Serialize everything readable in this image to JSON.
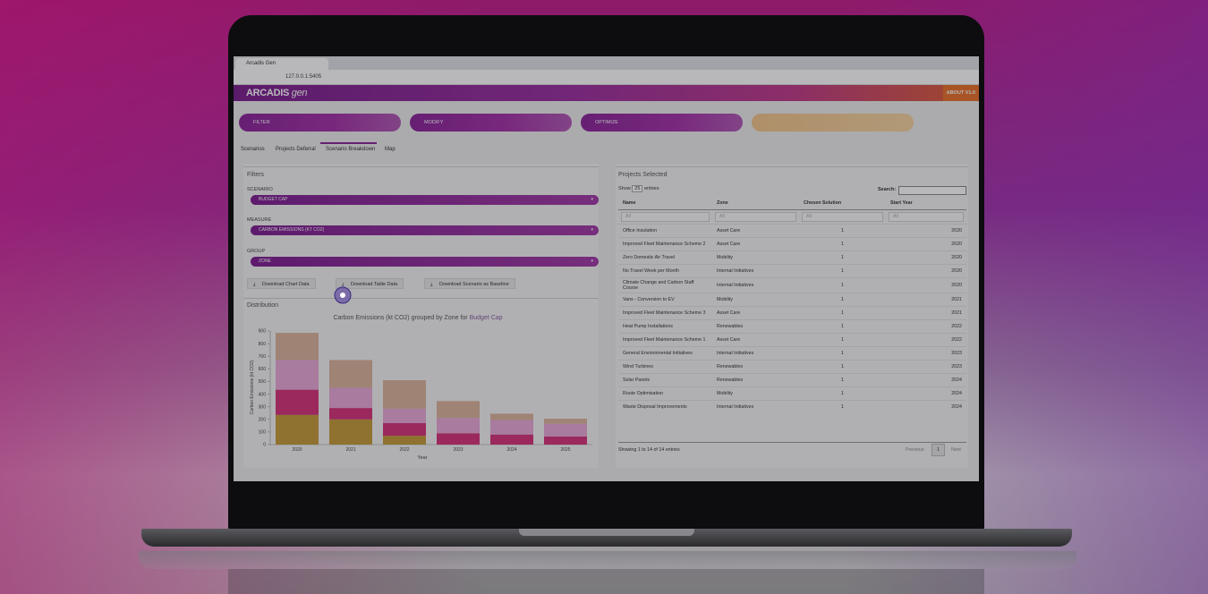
{
  "browser": {
    "tab_title": "Arcadis Gen",
    "url": "127.0.0.1:5405"
  },
  "app": {
    "logo": "ARCADIS",
    "logo_suffix": "gen",
    "about": "ABOUT V1.0",
    "actions": [
      "FILTER",
      "MODIFY",
      "OPTIMIZE"
    ],
    "tabs": [
      "Scenarios",
      "Projects Deferral",
      "Scenario Breakdown",
      "Map"
    ]
  },
  "filters": {
    "title": "Filters",
    "fields": [
      {
        "label": "SCENARIO",
        "value": "BUDGET CAP"
      },
      {
        "label": "MEASURE",
        "value": "CARBON EMISSIONS (KT CO2)"
      },
      {
        "label": "GROUP",
        "value": "ZONE"
      }
    ],
    "buttons": [
      "Download Chart Data",
      "Download Table Data",
      "Download Scenario as Baseline"
    ]
  },
  "distribution_title": "Distribution",
  "chart_data": {
    "type": "bar",
    "stacked": true,
    "title": "Carbon Emissions (kt CO2) grouped by Zone for",
    "title_highlight": "Budget Cap",
    "x_label": "Year",
    "y_label": "Carbon Emissions (kt CO2)",
    "categories": [
      "2020",
      "2021",
      "2022",
      "2023",
      "2024",
      "2025"
    ],
    "ylim": [
      0,
      900
    ],
    "yticks": [
      0,
      100,
      200,
      300,
      400,
      500,
      600,
      700,
      800,
      900
    ],
    "series": [
      {
        "color": "#c49a3a",
        "values": [
          235,
          200,
          70,
          0,
          0,
          0
        ]
      },
      {
        "color": "#d6337a",
        "values": [
          200,
          90,
          100,
          90,
          80,
          65
        ]
      },
      {
        "color": "#e8a8d8",
        "values": [
          235,
          160,
          115,
          120,
          115,
          100
        ]
      },
      {
        "color": "#dbb49c",
        "values": [
          215,
          220,
          225,
          135,
          50,
          40
        ]
      }
    ]
  },
  "table": {
    "title": "Projects Selected",
    "show_label": "Show",
    "page_length": 25,
    "entries_label": "entries",
    "search_label": "Search:",
    "columns": [
      "Name",
      "Zone",
      "Chosen Solution",
      "Start Year"
    ],
    "filter_placeholder": "All",
    "rows": [
      [
        "Office Insulation",
        "Asset Care",
        1,
        2020
      ],
      [
        "Improved Fleet Maintenance Scheme 2",
        "Asset Care",
        1,
        2020
      ],
      [
        "Zero Domestic Air Travel",
        "Mobility",
        1,
        2020
      ],
      [
        "No Travel Week per Month",
        "Internal Initiatives",
        1,
        2020
      ],
      [
        "Climate Change and Carbon Staff Course",
        "Internal Initiatives",
        1,
        2020
      ],
      [
        "Vans - Conversion to EV",
        "Mobility",
        1,
        2021
      ],
      [
        "Improved Fleet Maintenance Scheme 3",
        "Asset Care",
        1,
        2021
      ],
      [
        "Heat Pump Installations",
        "Renewables",
        1,
        2022
      ],
      [
        "Improved Fleet Maintenance Scheme 1",
        "Asset Care",
        1,
        2022
      ],
      [
        "General Environmental Initiatives",
        "Internal Initiatives",
        1,
        2023
      ],
      [
        "Wind Turbines",
        "Renewables",
        1,
        2023
      ],
      [
        "Solar Panels",
        "Renewables",
        1,
        2024
      ],
      [
        "Route Optimisation",
        "Mobility",
        1,
        2024
      ],
      [
        "Waste Disposal Improvements",
        "Internal Initiatives",
        1,
        2024
      ]
    ],
    "info": "Showing 1 to 14 of 14 entries",
    "pagination": [
      "Previous",
      "1",
      "Next"
    ]
  }
}
